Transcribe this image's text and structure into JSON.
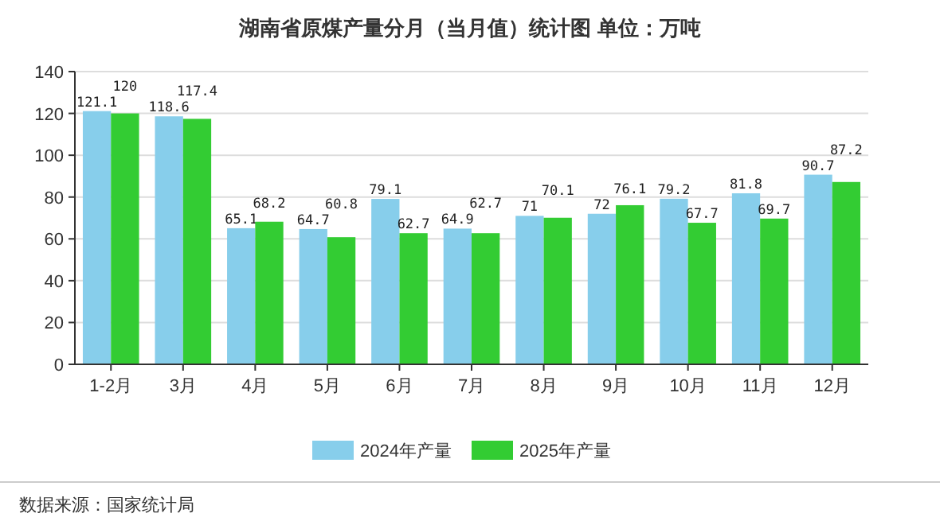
{
  "chart_data": {
    "type": "bar",
    "title": "湖南省原煤产量分月（当月值）统计图  单位：万吨",
    "categories": [
      "1-2月",
      "3月",
      "4月",
      "5月",
      "6月",
      "7月",
      "8月",
      "9月",
      "10月",
      "11月",
      "12月"
    ],
    "series": [
      {
        "name": "2024年产量",
        "color": "#87ceeb",
        "values": [
          121.1,
          118.6,
          65.1,
          64.7,
          79.1,
          64.9,
          71,
          72,
          79.2,
          81.8,
          90.7
        ]
      },
      {
        "name": "2025年产量",
        "color": "#33cc33",
        "values": [
          120,
          117.4,
          68.2,
          60.8,
          62.7,
          62.7,
          70.1,
          76.1,
          67.7,
          69.7,
          87.2
        ]
      }
    ],
    "ylim": [
      0,
      140
    ],
    "yticks": [
      0,
      20,
      40,
      60,
      80,
      100,
      120,
      140
    ],
    "grid": "y",
    "legend": "bottom",
    "data_labels": true,
    "annotations": [
      "数据来源：国家统计局"
    ]
  }
}
